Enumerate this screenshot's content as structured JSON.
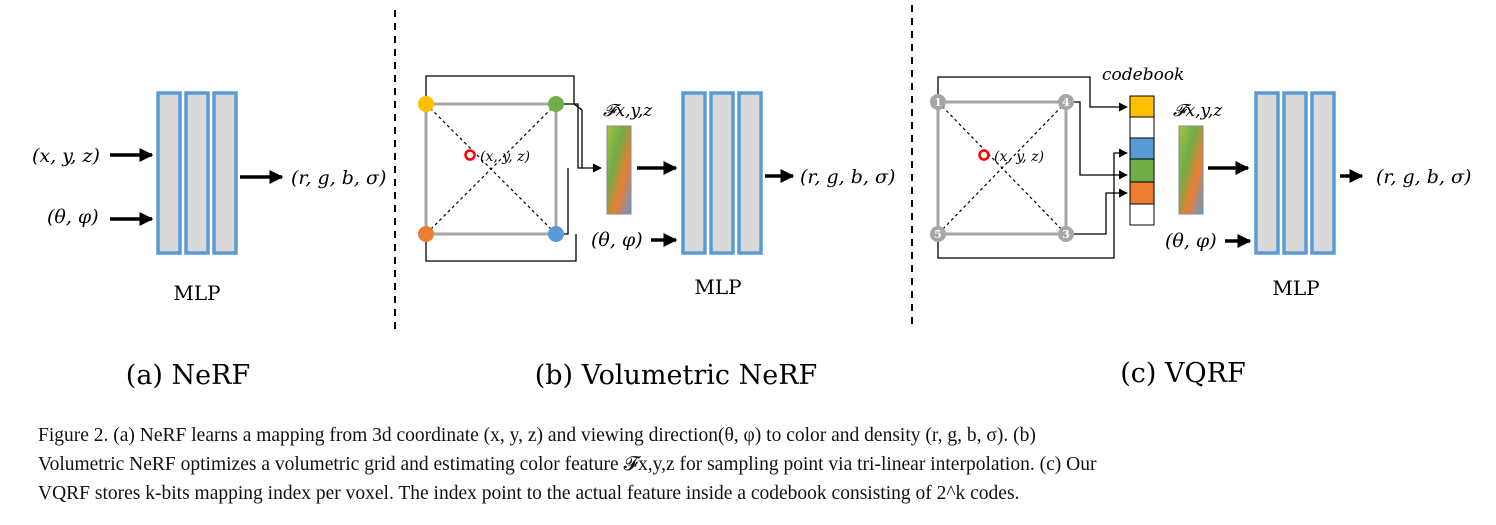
{
  "panels": {
    "a": {
      "inputs": [
        "(x, y, z)",
        "(θ, φ)"
      ],
      "output": "(r, g, b, σ)",
      "mlp_label": "MLP",
      "title": "(a) NeRF"
    },
    "b": {
      "point_label": "(x, y, z)",
      "feature_label": "𝓕x,y,z",
      "view_input": "(θ, φ)",
      "output": "(r, g, b, σ)",
      "mlp_label": "MLP",
      "title": "(b) Volumetric NeRF"
    },
    "c": {
      "codebook_label": "codebook",
      "point_label": "(x, y, z)",
      "corner_indices": [
        "1",
        "4",
        "5",
        "3"
      ],
      "feature_label": "𝓕x,y,z",
      "view_input": "(θ, φ)",
      "output": "(r, g, b, σ)",
      "mlp_label": "MLP",
      "title": "(c) VQRF"
    }
  },
  "colors": {
    "mlp_border": "#5b9bd5",
    "mlp_fill": "#d9d9d9",
    "corner_yellow": "#ffc000",
    "corner_green": "#70ad47",
    "corner_orange": "#ed7d31",
    "corner_blue": "#5b9bd5",
    "corner_gray": "#a6a6a6",
    "sample_point": "#ff0000"
  },
  "caption": {
    "line1": "Figure 2.  (a) NeRF learns a mapping from 3d coordinate (x, y, z) and viewing direction(θ, φ) to color and density (r, g, b, σ).  (b)",
    "line2": "Volumetric NeRF optimizes a volumetric grid and estimating color feature 𝓕x,y,z for sampling point via tri-linear interpolation. (c) Our",
    "line3": "VQRF stores k-bits mapping index per voxel. The index point to the actual feature inside a codebook consisting of 2^k codes."
  }
}
